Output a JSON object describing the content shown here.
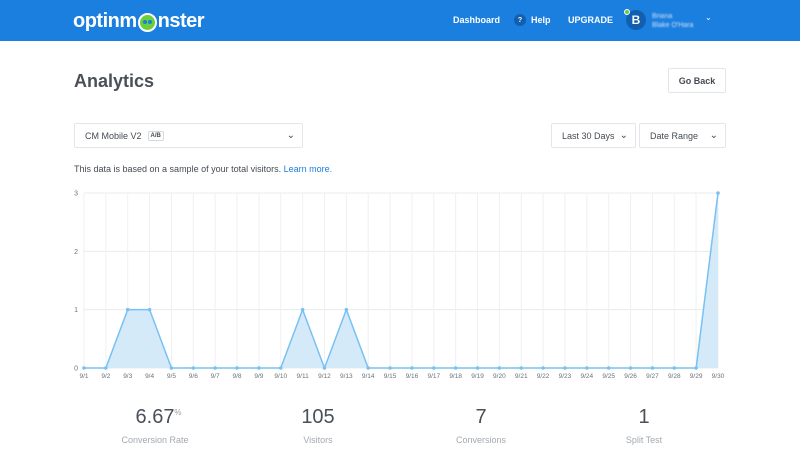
{
  "brand": {
    "logo_left": "optinm",
    "logo_right": "nster",
    "color": "#1b7fe0"
  },
  "nav": {
    "dashboard": "Dashboard",
    "help_icon": "?",
    "help": "Help",
    "upgrade": "UPGRADE",
    "avatar_initial": "B",
    "user_name": "Briana",
    "user_sub": "Blake O'Hara"
  },
  "page": {
    "title": "Analytics",
    "go_back": "Go Back",
    "campaign": "CM Mobile V2",
    "campaign_badge": "A/B",
    "range": "Last 30 Days",
    "date_range": "Date Range",
    "note": "This data is based on a sample of your total visitors.",
    "learn_more": "Learn more."
  },
  "chart_data": {
    "type": "area",
    "x": [
      "9/1",
      "9/2",
      "9/3",
      "9/4",
      "9/5",
      "9/6",
      "9/7",
      "9/8",
      "9/9",
      "9/10",
      "9/11",
      "9/12",
      "9/13",
      "9/14",
      "9/15",
      "9/16",
      "9/17",
      "9/18",
      "9/19",
      "9/20",
      "9/21",
      "9/22",
      "9/23",
      "9/24",
      "9/25",
      "9/26",
      "9/27",
      "9/28",
      "9/29",
      "9/30"
    ],
    "values": [
      0,
      0,
      1,
      1,
      0,
      0,
      0,
      0,
      0,
      0,
      1,
      0,
      1,
      0,
      0,
      0,
      0,
      0,
      0,
      0,
      0,
      0,
      0,
      0,
      0,
      0,
      0,
      0,
      0,
      3
    ],
    "y_ticks": [
      "0",
      "1",
      "2",
      "3"
    ],
    "ylim": [
      0,
      3
    ],
    "grid": true,
    "line_color": "#79c1f2",
    "fill_color": "#d4eaf9"
  },
  "stats": [
    {
      "value": "6.67",
      "unit": "%",
      "label": "Conversion Rate"
    },
    {
      "value": "105",
      "unit": "",
      "label": "Visitors"
    },
    {
      "value": "7",
      "unit": "",
      "label": "Conversions"
    },
    {
      "value": "1",
      "unit": "",
      "label": "Split Test"
    }
  ]
}
